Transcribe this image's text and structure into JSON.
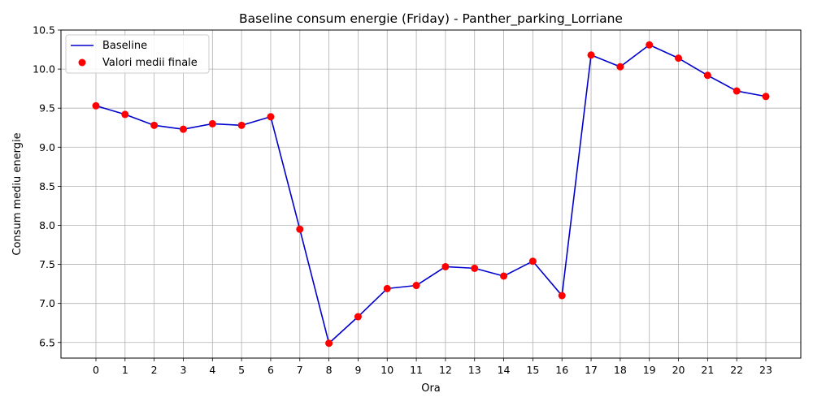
{
  "chart_data": {
    "type": "line",
    "title": "Baseline consum energie (Friday) - Panther_parking_Lorriane",
    "xlabel": "Ora",
    "ylabel": "Consum mediu energie",
    "x": [
      0,
      1,
      2,
      3,
      4,
      5,
      6,
      7,
      8,
      9,
      10,
      11,
      12,
      13,
      14,
      15,
      16,
      17,
      18,
      19,
      20,
      21,
      22,
      23
    ],
    "xticks": [
      "0",
      "1",
      "2",
      "3",
      "4",
      "5",
      "6",
      "7",
      "8",
      "9",
      "10",
      "11",
      "12",
      "13",
      "14",
      "15",
      "16",
      "17",
      "18",
      "19",
      "20",
      "21",
      "22",
      "23"
    ],
    "yticks": [
      "6.5",
      "7.0",
      "7.5",
      "8.0",
      "8.5",
      "9.0",
      "9.5",
      "10.0",
      "10.5"
    ],
    "ytick_values": [
      6.5,
      7.0,
      7.5,
      8.0,
      8.5,
      9.0,
      9.5,
      10.0,
      10.5
    ],
    "xlim": [
      -1.2,
      24.2
    ],
    "ylim": [
      6.3,
      10.5
    ],
    "grid": true,
    "legend_position": "top-left",
    "series": [
      {
        "name": "Baseline",
        "kind": "line",
        "color": "#0000cc",
        "values": [
          9.53,
          9.42,
          9.28,
          9.23,
          9.3,
          9.28,
          9.39,
          7.95,
          6.49,
          6.83,
          7.19,
          7.23,
          7.47,
          7.45,
          7.35,
          7.54,
          7.1,
          10.18,
          10.03,
          10.31,
          10.14,
          9.92,
          9.72,
          9.65
        ]
      },
      {
        "name": "Valori medii finale",
        "kind": "scatter",
        "color": "#ff0000",
        "values": [
          9.53,
          9.42,
          9.28,
          9.23,
          9.3,
          9.28,
          9.39,
          7.95,
          6.49,
          6.83,
          7.19,
          7.23,
          7.47,
          7.45,
          7.35,
          7.54,
          7.1,
          10.18,
          10.03,
          10.31,
          10.14,
          9.92,
          9.72,
          9.65
        ]
      }
    ]
  }
}
